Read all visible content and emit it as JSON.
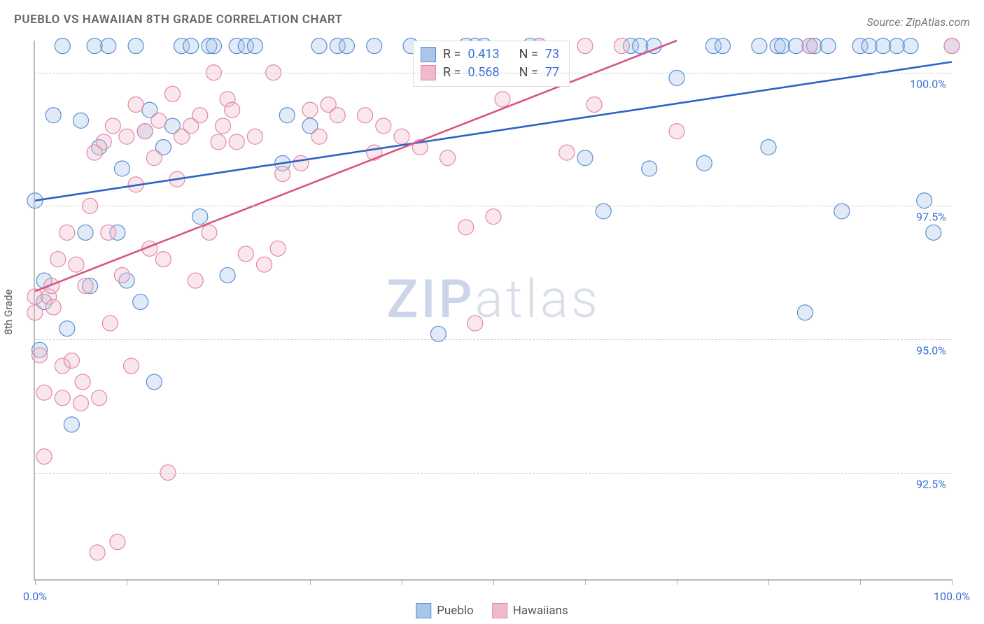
{
  "title": "PUEBLO VS HAWAIIAN 8TH GRADE CORRELATION CHART",
  "source": "Source: ZipAtlas.com",
  "ylabel": "8th Grade",
  "watermark_zip": "ZIP",
  "watermark_rest": "atlas",
  "chart": {
    "type": "scatter",
    "background_color": "#ffffff",
    "grid_color": "#cccccc",
    "axis_color": "#bbbbbb",
    "tick_label_color": "#3b6fd6",
    "marker_radius": 11,
    "marker_fill_opacity": 0.35,
    "xlim": [
      0,
      100
    ],
    "ylim": [
      90.5,
      100.6
    ],
    "y_gridlines": [
      92.5,
      95.0,
      97.5,
      100.0
    ],
    "y_tick_labels": [
      "92.5%",
      "95.0%",
      "97.5%",
      "100.0%"
    ],
    "x_ticks": [
      0,
      10,
      20,
      30,
      40,
      50,
      60,
      70,
      80,
      90,
      100
    ],
    "x_tick_labels_shown": {
      "0": "0.0%",
      "100": "100.0%"
    },
    "series": [
      {
        "name": "Pueblo",
        "color_stroke": "#5a8fd6",
        "color_fill": "#a9c6ea",
        "R": "0.413",
        "N": "73",
        "trend": {
          "x1": 0,
          "y1": 97.6,
          "x2": 100,
          "y2": 100.2,
          "color": "#2a63c8"
        },
        "points": [
          [
            0,
            97.6
          ],
          [
            0.5,
            94.8
          ],
          [
            1,
            95.7
          ],
          [
            1,
            96.1
          ],
          [
            2,
            99.2
          ],
          [
            3,
            100.5
          ],
          [
            3.5,
            95.2
          ],
          [
            4,
            93.4
          ],
          [
            5,
            99.1
          ],
          [
            5.5,
            97.0
          ],
          [
            6,
            96.0
          ],
          [
            6.5,
            100.5
          ],
          [
            7,
            98.6
          ],
          [
            8,
            100.5
          ],
          [
            9,
            97.0
          ],
          [
            9.5,
            98.2
          ],
          [
            10,
            96.1
          ],
          [
            11,
            100.5
          ],
          [
            11.5,
            95.7
          ],
          [
            12,
            98.9
          ],
          [
            12.5,
            99.3
          ],
          [
            13,
            94.2
          ],
          [
            14,
            98.6
          ],
          [
            15,
            99.0
          ],
          [
            16,
            100.5
          ],
          [
            17,
            100.5
          ],
          [
            18,
            97.3
          ],
          [
            19,
            100.5
          ],
          [
            19.5,
            100.5
          ],
          [
            21,
            96.2
          ],
          [
            22,
            100.5
          ],
          [
            23,
            100.5
          ],
          [
            24,
            100.5
          ],
          [
            27,
            98.3
          ],
          [
            27.5,
            99.2
          ],
          [
            30,
            99.0
          ],
          [
            31,
            100.5
          ],
          [
            33,
            100.5
          ],
          [
            34,
            100.5
          ],
          [
            37,
            100.5
          ],
          [
            41,
            100.5
          ],
          [
            44,
            95.1
          ],
          [
            47,
            100.5
          ],
          [
            48,
            100.5
          ],
          [
            49,
            100.5
          ],
          [
            54,
            100.5
          ],
          [
            55,
            100.5
          ],
          [
            60,
            98.4
          ],
          [
            62,
            97.4
          ],
          [
            65,
            100.5
          ],
          [
            66,
            100.5
          ],
          [
            67,
            98.2
          ],
          [
            67.5,
            100.5
          ],
          [
            70,
            99.9
          ],
          [
            73,
            98.3
          ],
          [
            74,
            100.5
          ],
          [
            75,
            100.5
          ],
          [
            79,
            100.5
          ],
          [
            80,
            98.6
          ],
          [
            81,
            100.5
          ],
          [
            81.5,
            100.5
          ],
          [
            83,
            100.5
          ],
          [
            84,
            95.5
          ],
          [
            84.5,
            100.5
          ],
          [
            85,
            100.5
          ],
          [
            86.5,
            100.5
          ],
          [
            88,
            97.4
          ],
          [
            90,
            100.5
          ],
          [
            91,
            100.5
          ],
          [
            92.5,
            100.5
          ],
          [
            94,
            100.5
          ],
          [
            95.5,
            100.5
          ],
          [
            97,
            97.6
          ],
          [
            98,
            97.0
          ],
          [
            100,
            100.5
          ]
        ]
      },
      {
        "name": "Hawaiians",
        "color_stroke": "#e089a4",
        "color_fill": "#f2b9cb",
        "R": "0.568",
        "N": "77",
        "trend": {
          "x1": 0,
          "y1": 95.9,
          "x2": 70,
          "y2": 100.6,
          "color": "#d95383"
        },
        "points": [
          [
            0,
            95.8
          ],
          [
            0,
            95.5
          ],
          [
            0.5,
            94.7
          ],
          [
            1,
            94.0
          ],
          [
            1,
            92.8
          ],
          [
            1.5,
            95.8
          ],
          [
            1.8,
            96.0
          ],
          [
            2,
            95.6
          ],
          [
            2.5,
            96.5
          ],
          [
            3,
            93.9
          ],
          [
            3,
            94.5
          ],
          [
            3.5,
            97.0
          ],
          [
            4,
            94.6
          ],
          [
            4.5,
            96.4
          ],
          [
            5,
            93.8
          ],
          [
            5.2,
            94.2
          ],
          [
            5.5,
            96.0
          ],
          [
            6,
            97.5
          ],
          [
            6.5,
            98.5
          ],
          [
            6.8,
            91.0
          ],
          [
            7,
            93.9
          ],
          [
            7.5,
            98.7
          ],
          [
            8,
            97.0
          ],
          [
            8.2,
            95.3
          ],
          [
            8.5,
            99.0
          ],
          [
            9,
            91.2
          ],
          [
            9.5,
            96.2
          ],
          [
            10,
            98.8
          ],
          [
            10.5,
            94.5
          ],
          [
            11,
            99.4
          ],
          [
            11,
            97.9
          ],
          [
            12,
            98.9
          ],
          [
            12.5,
            96.7
          ],
          [
            13,
            98.4
          ],
          [
            13.5,
            99.1
          ],
          [
            14,
            96.5
          ],
          [
            14.5,
            92.5
          ],
          [
            15,
            99.6
          ],
          [
            15.5,
            98.0
          ],
          [
            16,
            98.8
          ],
          [
            17,
            99.0
          ],
          [
            17.5,
            96.1
          ],
          [
            18,
            99.2
          ],
          [
            19,
            97.0
          ],
          [
            19.5,
            100.0
          ],
          [
            20,
            98.7
          ],
          [
            20.5,
            99.0
          ],
          [
            21,
            99.5
          ],
          [
            21.5,
            99.3
          ],
          [
            22,
            98.7
          ],
          [
            23,
            96.6
          ],
          [
            24,
            98.8
          ],
          [
            25,
            96.4
          ],
          [
            26,
            100.0
          ],
          [
            26.5,
            96.7
          ],
          [
            27,
            98.1
          ],
          [
            29,
            98.3
          ],
          [
            30,
            99.3
          ],
          [
            31,
            98.8
          ],
          [
            32,
            99.4
          ],
          [
            33,
            99.2
          ],
          [
            36,
            99.2
          ],
          [
            37,
            98.5
          ],
          [
            38,
            99.0
          ],
          [
            40,
            98.8
          ],
          [
            42,
            98.6
          ],
          [
            45,
            98.4
          ],
          [
            47,
            97.1
          ],
          [
            48,
            95.3
          ],
          [
            50,
            97.3
          ],
          [
            51,
            99.5
          ],
          [
            55,
            100.5
          ],
          [
            58,
            98.5
          ],
          [
            60,
            100.5
          ],
          [
            61,
            99.4
          ],
          [
            64,
            100.5
          ],
          [
            70,
            98.9
          ],
          [
            84.5,
            100.5
          ],
          [
            100,
            100.5
          ]
        ]
      }
    ]
  },
  "legend_bottom": [
    {
      "label": "Pueblo",
      "fill": "#a9c6ea",
      "stroke": "#5a8fd6"
    },
    {
      "label": "Hawaiians",
      "fill": "#f2b9cb",
      "stroke": "#e089a4"
    }
  ],
  "stats_labels": {
    "R": "R =",
    "N": "N ="
  }
}
